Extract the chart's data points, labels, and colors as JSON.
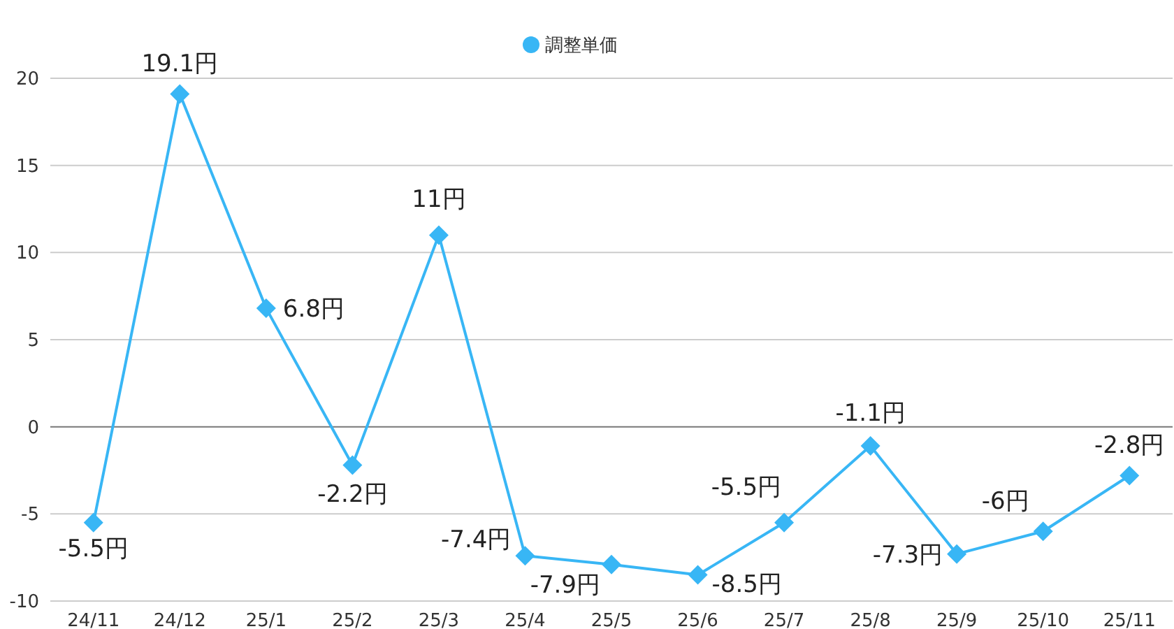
{
  "chart_data": {
    "type": "line",
    "categories": [
      "24/11",
      "24/12",
      "25/1",
      "25/2",
      "25/3",
      "25/4",
      "25/5",
      "25/6",
      "25/7",
      "25/8",
      "25/9",
      "25/10",
      "25/11"
    ],
    "series": [
      {
        "name": "調整単価",
        "color": "#38b6f5",
        "values": [
          -5.5,
          19.1,
          6.8,
          -2.2,
          11,
          -7.4,
          -7.9,
          -8.5,
          -5.5,
          -1.1,
          -7.3,
          -6,
          -2.8
        ],
        "value_labels": [
          "-5.5円",
          "19.1円",
          "6.8円",
          "-2.2円",
          "11円",
          "-7.4円",
          "-7.9円",
          "-8.5円",
          "-5.5円",
          "-1.1円",
          "-7.3円",
          "-6円",
          "-2.8円"
        ]
      }
    ],
    "ylim": [
      -10,
      20
    ],
    "yticks": [
      -10,
      -5,
      0,
      5,
      10,
      15,
      20
    ],
    "grid": "y",
    "legend": "top",
    "marker": "diamond",
    "line_style": "solid"
  }
}
